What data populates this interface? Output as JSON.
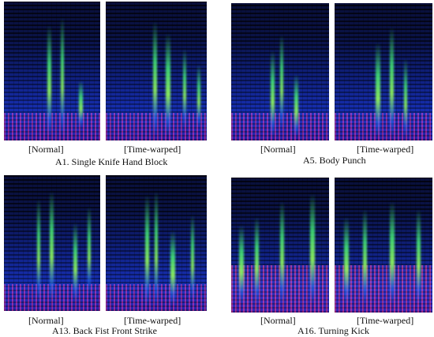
{
  "panels": [
    {
      "id": "a1",
      "normal_label": "[Normal]",
      "warped_label": "[Time-warped]",
      "caption": "A1. Single Knife Hand Block"
    },
    {
      "id": "a5",
      "normal_label": "[Normal]",
      "warped_label": "[Time-warped]",
      "caption": "A5. Body Punch"
    },
    {
      "id": "a13",
      "normal_label": "[Normal]",
      "warped_label": "[Time-warped]",
      "caption": "A13. Back Fist Front Strike"
    },
    {
      "id": "a16",
      "normal_label": "[Normal]",
      "warped_label": "[Time-warped]",
      "caption": "A16. Turning Kick"
    }
  ]
}
